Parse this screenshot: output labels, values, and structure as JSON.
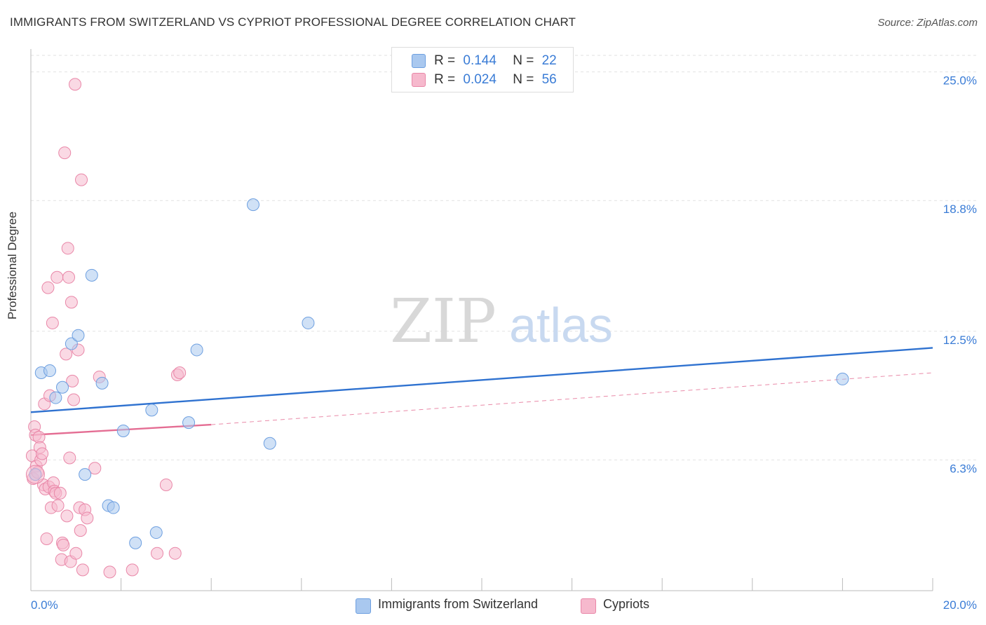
{
  "header": {
    "title": "IMMIGRANTS FROM SWITZERLAND VS CYPRIOT PROFESSIONAL DEGREE CORRELATION CHART",
    "source": "Source: ZipAtlas.com"
  },
  "watermark": {
    "zip": "ZIP",
    "atlas": "atlas"
  },
  "legend": {
    "rows": [
      {
        "r_label": "R =",
        "r_value": "0.144",
        "n_label": "N =",
        "n_value": "22",
        "color": "#a9c8ef",
        "border": "#6d9fe0"
      },
      {
        "r_label": "R =",
        "r_value": "0.024",
        "n_label": "N =",
        "n_value": "56",
        "color": "#f6b9cd",
        "border": "#e987a8"
      }
    ]
  },
  "bottom_legend": {
    "series1": "Immigrants from Switzerland",
    "series2": "Cypriots"
  },
  "chart_data": {
    "type": "scatter",
    "title": "IMMIGRANTS FROM SWITZERLAND VS CYPRIOT PROFESSIONAL DEGREE CORRELATION CHART",
    "xlabel": "",
    "ylabel": "Professional Degree",
    "xlim": [
      0,
      20
    ],
    "ylim": [
      0,
      26.1
    ],
    "x_tick_labels": [
      "0.0%",
      "20.0%"
    ],
    "y_ticks": [
      6.3,
      12.5,
      18.8,
      25.0
    ],
    "y_tick_labels": [
      "6.3%",
      "12.5%",
      "18.8%",
      "25.0%"
    ],
    "grid": true,
    "series": [
      {
        "name": "Immigrants from Switzerland",
        "color": "#a9c8ef",
        "edge": "#6d9fe0",
        "trend_color": "#2f72d0",
        "trend": {
          "x0": 0,
          "y0": 8.6,
          "x1": 20,
          "y1": 11.7
        },
        "points": [
          [
            0.1,
            5.6
          ],
          [
            0.23,
            10.5
          ],
          [
            0.42,
            10.6
          ],
          [
            0.55,
            9.3
          ],
          [
            0.7,
            9.8
          ],
          [
            0.9,
            11.9
          ],
          [
            1.05,
            12.3
          ],
          [
            1.2,
            5.6
          ],
          [
            1.35,
            15.2
          ],
          [
            1.58,
            10.0
          ],
          [
            1.72,
            4.1
          ],
          [
            1.83,
            4.0
          ],
          [
            2.05,
            7.7
          ],
          [
            2.32,
            2.3
          ],
          [
            2.68,
            8.7
          ],
          [
            2.78,
            2.8
          ],
          [
            3.5,
            8.1
          ],
          [
            3.68,
            11.6
          ],
          [
            4.93,
            18.6
          ],
          [
            5.3,
            7.1
          ],
          [
            6.15,
            12.9
          ],
          [
            18.0,
            10.2
          ]
        ]
      },
      {
        "name": "Cypriots",
        "color": "#f6b9cd",
        "edge": "#e987a8",
        "trend_color": "#e46d93",
        "trend": {
          "x0": 0,
          "y0": 7.5,
          "x1": 4.0,
          "y1": 8.0
        },
        "trend_dashed": {
          "x0": 4.0,
          "y0": 8.0,
          "x1": 20,
          "y1": 10.5
        },
        "points": [
          [
            0.03,
            6.5
          ],
          [
            0.05,
            5.4
          ],
          [
            0.08,
            7.9
          ],
          [
            0.1,
            7.5
          ],
          [
            0.12,
            6.0
          ],
          [
            0.15,
            5.7
          ],
          [
            0.18,
            7.4
          ],
          [
            0.2,
            6.9
          ],
          [
            0.22,
            6.3
          ],
          [
            0.25,
            6.6
          ],
          [
            0.28,
            5.1
          ],
          [
            0.3,
            9.0
          ],
          [
            0.32,
            4.9
          ],
          [
            0.35,
            2.5
          ],
          [
            0.38,
            14.6
          ],
          [
            0.4,
            5.0
          ],
          [
            0.42,
            9.4
          ],
          [
            0.45,
            4.0
          ],
          [
            0.48,
            12.9
          ],
          [
            0.5,
            5.2
          ],
          [
            0.52,
            4.8
          ],
          [
            0.55,
            4.7
          ],
          [
            0.58,
            15.1
          ],
          [
            0.6,
            4.1
          ],
          [
            0.65,
            4.7
          ],
          [
            0.68,
            1.5
          ],
          [
            0.7,
            2.3
          ],
          [
            0.72,
            2.2
          ],
          [
            0.75,
            21.1
          ],
          [
            0.78,
            11.4
          ],
          [
            0.8,
            3.6
          ],
          [
            0.82,
            16.5
          ],
          [
            0.84,
            15.1
          ],
          [
            0.86,
            6.4
          ],
          [
            0.88,
            1.4
          ],
          [
            0.9,
            13.9
          ],
          [
            0.92,
            10.1
          ],
          [
            0.95,
            9.2
          ],
          [
            0.98,
            24.4
          ],
          [
            1.0,
            1.8
          ],
          [
            1.05,
            11.6
          ],
          [
            1.08,
            4.0
          ],
          [
            1.1,
            2.9
          ],
          [
            1.12,
            19.8
          ],
          [
            1.15,
            1.0
          ],
          [
            1.2,
            3.9
          ],
          [
            1.25,
            3.5
          ],
          [
            1.42,
            5.9
          ],
          [
            1.52,
            10.3
          ],
          [
            1.75,
            0.9
          ],
          [
            2.25,
            1.0
          ],
          [
            2.8,
            1.8
          ],
          [
            3.0,
            5.1
          ],
          [
            3.2,
            1.8
          ],
          [
            3.25,
            10.4
          ],
          [
            3.3,
            10.5
          ]
        ]
      }
    ]
  }
}
